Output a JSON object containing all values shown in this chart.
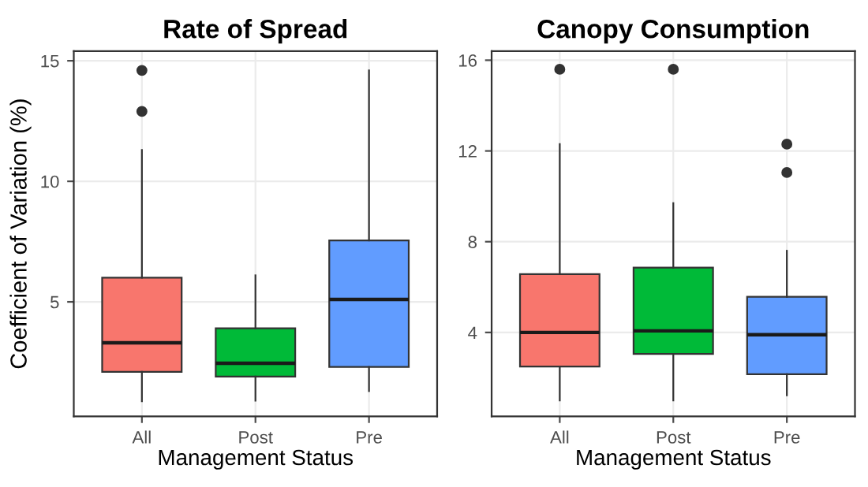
{
  "chart_data": [
    {
      "type": "box",
      "title": "Rate of Spread",
      "xlabel": "Management Status",
      "ylabel": "Coefficient of Variation (%)",
      "categories": [
        "All",
        "Post",
        "Pre"
      ],
      "colors": [
        "#f8766d",
        "#00ba38",
        "#619cff"
      ],
      "ylim": [
        0.25,
        15.4
      ],
      "yticks": [
        5,
        10,
        15
      ],
      "grid": true,
      "legend": false,
      "boxes": [
        {
          "low": 0.88,
          "q1": 2.1,
          "median": 3.3,
          "q3": 6.0,
          "high": 11.3,
          "outliers": [
            14.6,
            12.9
          ]
        },
        {
          "low": 0.9,
          "q1": 1.9,
          "median": 2.45,
          "q3": 3.9,
          "high": 6.1
        },
        {
          "low": 1.3,
          "q1": 2.3,
          "median": 5.1,
          "q3": 7.55,
          "high": 14.6
        }
      ]
    },
    {
      "type": "box",
      "title": "Canopy Consumption",
      "xlabel": "Management Status",
      "categories": [
        "All",
        "Post",
        "Pre"
      ],
      "colors": [
        "#f8766d",
        "#00ba38",
        "#619cff"
      ],
      "ylim": [
        0.3,
        16.4
      ],
      "yticks": [
        4,
        8,
        12,
        16
      ],
      "grid": true,
      "legend": false,
      "boxes": [
        {
          "low": 1.0,
          "q1": 2.5,
          "median": 4.0,
          "q3": 6.57,
          "high": 12.3,
          "outliers": [
            15.6
          ]
        },
        {
          "low": 1.0,
          "q1": 3.05,
          "median": 4.07,
          "q3": 6.86,
          "high": 9.7,
          "outliers": [
            15.6
          ]
        },
        {
          "low": 1.23,
          "q1": 2.16,
          "median": 3.9,
          "q3": 5.57,
          "high": 7.6,
          "outliers": [
            12.3,
            11.05
          ]
        }
      ]
    }
  ]
}
